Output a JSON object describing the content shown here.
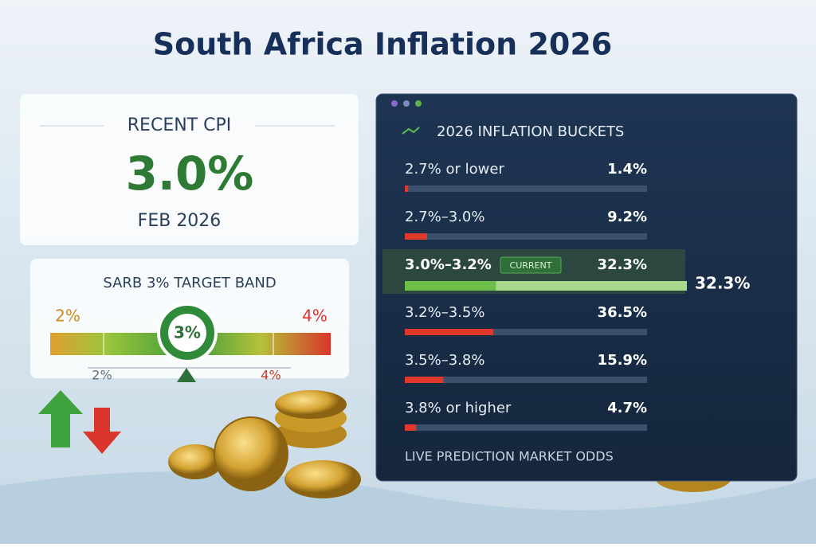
{
  "title": "South Africa Inflation 2026",
  "cpi_card": {
    "heading": "RECENT CPI",
    "value": "3.0%",
    "date": "FEB 2026"
  },
  "target_band": {
    "heading": "SARB 3% TARGET BAND",
    "left_label": "2%",
    "right_label": "4%",
    "center_label": "3%",
    "low_tick": "2%",
    "high_tick": "4%"
  },
  "buckets": {
    "title": "2026 INFLATION BUCKETS",
    "labels": [
      "2.7% or lower",
      "2.7%–3.0%",
      "3.0%–3.2%",
      "3.2%–3.5%",
      "3.5%–3.8%",
      "3.8% or higher"
    ],
    "values": [
      1.4,
      9.2,
      32.3,
      36.5,
      15.9,
      4.7
    ],
    "value_labels": [
      "1.4%",
      "9.2%",
      "32.3%",
      "36.5%",
      "15.9%",
      "4.7%"
    ],
    "current": 2,
    "current_tag": "CURRENT",
    "footer": "LIVE PREDICTION MARKET ODDS"
  }
}
